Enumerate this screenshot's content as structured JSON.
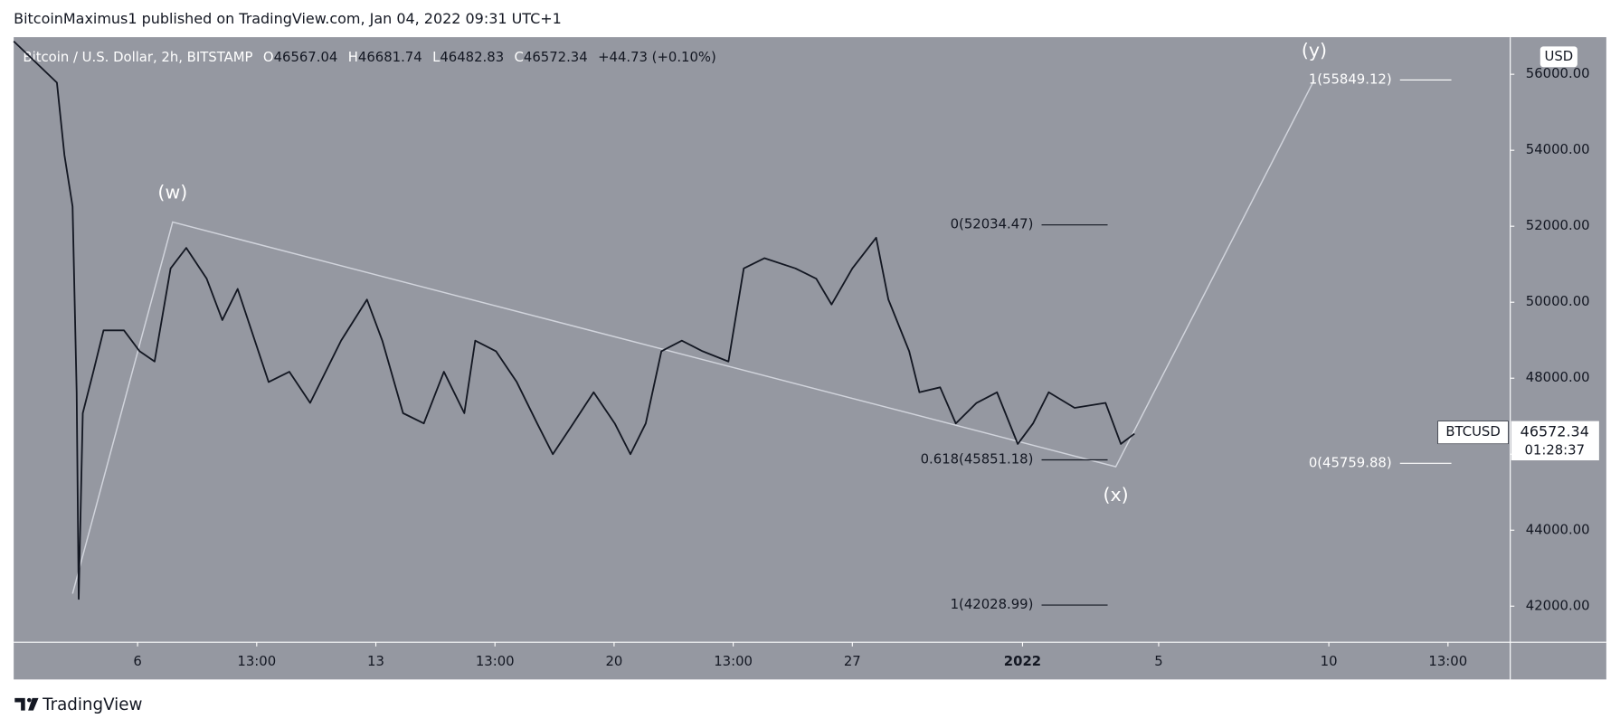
{
  "header": "BitcoinMaximus1 published on TradingView.com, Jan 04, 2022 09:31 UTC+1",
  "legend": {
    "symbol": "Bitcoin / U.S. Dollar, 2h, BITSTAMP",
    "ohlc": [
      {
        "key": "O",
        "value": 46567.04
      },
      {
        "key": "H",
        "value": 46681.74
      },
      {
        "key": "L",
        "value": 46482.83
      },
      {
        "key": "C",
        "value": 46572.34
      }
    ],
    "change": "+44.73 (+0.10%)"
  },
  "currency": "USD",
  "footer": "TradingView",
  "chart_data": {
    "type": "line",
    "x": [
      2.36,
      3.63,
      3.85,
      4.09,
      4.21,
      4.27,
      4.39,
      4.7,
      5.0,
      5.6,
      6.06,
      6.5,
      6.97,
      7.43,
      8.03,
      8.49,
      8.94,
      9.85,
      10.46,
      11.07,
      11.98,
      12.74,
      13.19,
      13.8,
      14.41,
      15.0,
      15.6,
      15.92,
      16.53,
      17.14,
      17.74,
      18.2,
      18.8,
      19.4,
      20.02,
      20.48,
      20.93,
      21.39,
      21.99,
      22.6,
      23.36,
      23.81,
      24.42,
      25.33,
      25.94,
      26.39,
      27.0,
      27.7,
      28.06,
      28.67,
      28.97,
      29.58,
      30.04,
      30.65,
      31.25,
      31.86,
      32.31,
      32.77,
      33.53,
      34.44,
      34.89,
      35.29
    ],
    "series": [
      {
        "name": "BTCUSD",
        "color": "#131722",
        "values": [
          56870,
          55780,
          53880,
          52520,
          47630,
          42190,
          47080,
          48170,
          49260,
          49260,
          48710,
          48440,
          50890,
          51430,
          50620,
          49530,
          50350,
          47900,
          48170,
          47350,
          48990,
          50070,
          48990,
          47080,
          46810,
          48170,
          47080,
          48990,
          48710,
          47900,
          46810,
          46000,
          46810,
          47630,
          46810,
          46000,
          46810,
          48710,
          48990,
          48710,
          48440,
          50890,
          51160,
          50890,
          50620,
          49940,
          50890,
          51700,
          50070,
          48710,
          47630,
          47760,
          46810,
          47350,
          47630,
          46270,
          46810,
          47630,
          47220,
          47350,
          46270,
          46540
        ]
      }
    ],
    "last_price": 46572.34,
    "countdown": "01:28:37",
    "xlim": [
      2.36,
      46.33
    ],
    "ylim": [
      41049,
      56977
    ],
    "xticks": [
      6,
      {
        "value": 9.5,
        "label": "13:00"
      },
      13,
      {
        "value": 16.5,
        "label": "13:00"
      },
      20,
      {
        "value": 23.5,
        "label": "13:00"
      },
      27,
      {
        "value": 32,
        "label": "2022"
      },
      {
        "value": 36,
        "label": "5"
      },
      {
        "value": 41,
        "label": "10"
      },
      {
        "value": 44.5,
        "label": "13:00"
      }
    ],
    "yticks": [
      {
        "value": 42000,
        "label": "42000.00"
      },
      {
        "value": 44000,
        "label": "44000.00"
      },
      {
        "value": 46000,
        "label": "46000.00"
      },
      {
        "value": 48000,
        "label": "48000.00"
      },
      {
        "value": 50000,
        "label": "50000.00"
      },
      {
        "value": 52000,
        "label": "52000.00"
      },
      {
        "value": 54000,
        "label": "54000.00"
      },
      {
        "value": 56000,
        "label": "56000.00"
      }
    ],
    "waves": {
      "color": "#d1d4dc",
      "x": [
        4.09,
        7.03,
        34.74,
        40.57
      ],
      "y": [
        42330,
        52110,
        45670,
        55850
      ],
      "labels": [
        null,
        "(w)",
        "(x)",
        "(y)"
      ]
    },
    "fib_levels": [
      {
        "label": "0(52034.47)",
        "value": 52034.47,
        "x": [
          32.56,
          34.5
        ],
        "color": "#131722"
      },
      {
        "label": "0.618(45851.18)",
        "value": 45851.18,
        "x": [
          32.56,
          34.5
        ],
        "color": "#131722"
      },
      {
        "label": "1(42028.99)",
        "value": 42028.99,
        "x": [
          32.56,
          34.5
        ],
        "color": "#131722"
      },
      {
        "label": "1(55849.12)",
        "value": 55849.12,
        "x": [
          43.09,
          44.6
        ],
        "color": "#ffffff"
      },
      {
        "label": "0(45759.88)",
        "value": 45759.88,
        "x": [
          43.09,
          44.6
        ],
        "color": "#ffffff"
      }
    ]
  }
}
